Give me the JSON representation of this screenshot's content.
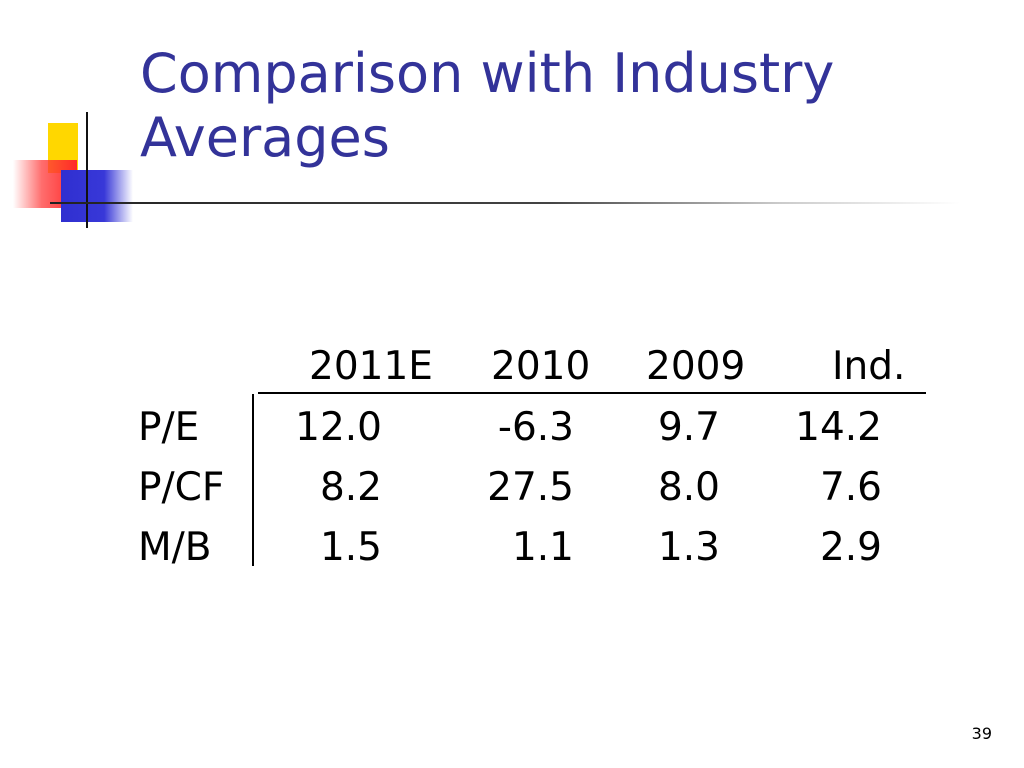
{
  "slide": {
    "title_line1": "Comparison with Industry",
    "title_line2": "Averages",
    "page_number": "39",
    "colors": {
      "title": "#333399",
      "accent_yellow": "#ffd700",
      "accent_red": "#ff2a2a",
      "accent_blue": "#2f2fd0"
    }
  },
  "table": {
    "columns": [
      "2011E",
      "2010",
      "2009",
      "Ind."
    ],
    "rows": [
      {
        "label": "P/E",
        "values": [
          "12.0",
          "-6.3",
          "9.7",
          "14.2"
        ]
      },
      {
        "label": "P/CF",
        "values": [
          "8.2",
          "27.5",
          "8.0",
          "7.6"
        ]
      },
      {
        "label": "M/B",
        "values": [
          "1.5",
          "1.1",
          "1.3",
          "2.9"
        ]
      }
    ]
  }
}
